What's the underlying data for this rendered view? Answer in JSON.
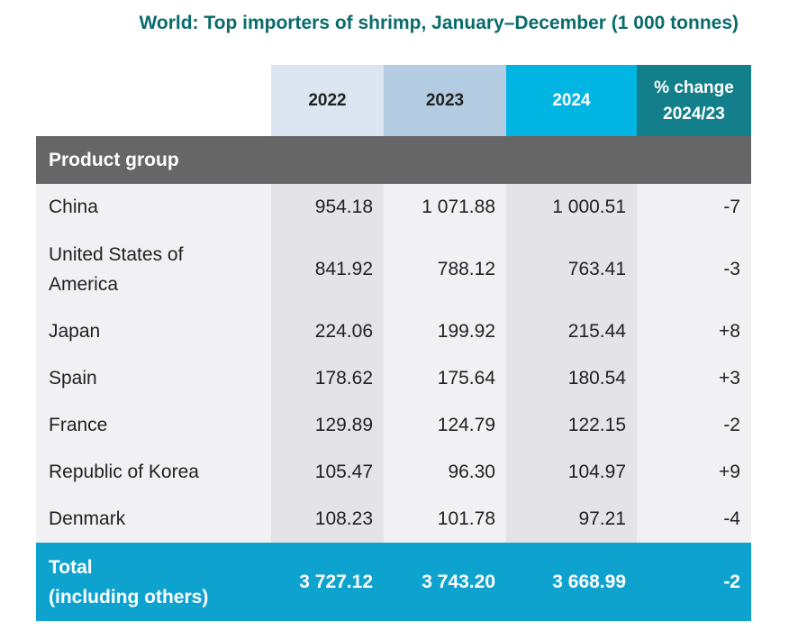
{
  "title": "World: Top importers of shrimp, January–December (1 000 tonnes)",
  "colors": {
    "title": "#0a6b6b",
    "header_2022": "#dce6f0",
    "header_2023": "#b4cce1",
    "header_2024": "#00b5e2",
    "header_change": "#137f8a",
    "product_group_bar": "#666666",
    "total_row": "#0ea3cf"
  },
  "chart_data": {
    "type": "table",
    "title": "World: Top importers of shrimp, January–December (1 000 tonnes)",
    "columns": [
      "2022",
      "2023",
      "2024",
      "% change\n2024/23"
    ],
    "row_group_label": "Product group",
    "rows": [
      {
        "name": "China",
        "values": [
          "954.18",
          "1 071.88",
          "1 000.51",
          "-7"
        ]
      },
      {
        "name": "United States of\nAmerica",
        "values": [
          "841.92",
          "788.12",
          "763.41",
          "-3"
        ]
      },
      {
        "name": "Japan",
        "values": [
          "224.06",
          "199.92",
          "215.44",
          "+8"
        ]
      },
      {
        "name": "Spain",
        "values": [
          "178.62",
          "175.64",
          "180.54",
          "+3"
        ]
      },
      {
        "name": "France",
        "values": [
          "129.89",
          "124.79",
          "122.15",
          "-2"
        ]
      },
      {
        "name": "Republic of Korea",
        "values": [
          "105.47",
          "96.30",
          "104.97",
          "+9"
        ]
      },
      {
        "name": "Denmark",
        "values": [
          "108.23",
          "101.78",
          "97.21",
          "-4"
        ]
      }
    ],
    "total": {
      "name": "Total\n(including others)",
      "values": [
        "3 727.12",
        "3 743.20",
        "3 668.99",
        "-2"
      ]
    }
  }
}
